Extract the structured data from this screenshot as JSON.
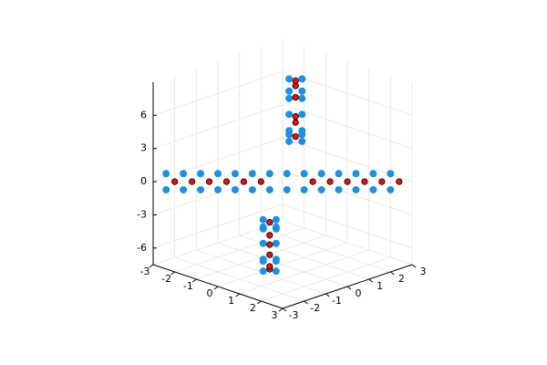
{
  "chart_data": {
    "type": "scatter3d",
    "xlim": [
      -3,
      3
    ],
    "ylim": [
      -3,
      3
    ],
    "zlim": [
      -7.5,
      9
    ],
    "xticks": [
      -3,
      -2,
      -1,
      0,
      1,
      2,
      3
    ],
    "yticks": [
      -3,
      -2,
      -1,
      0,
      1,
      2,
      3
    ],
    "zticks": [
      -6,
      -3,
      0,
      3,
      6
    ],
    "grid": true,
    "series": [
      {
        "color": "#1e90e0",
        "marker_size": 3.6,
        "x": [
          1.85,
          1.55,
          1.45,
          1.15,
          1.05,
          0.75,
          0.75,
          0.45,
          0.45,
          0.15,
          0.25,
          -0.05,
          0.05,
          -0.25,
          -0.05,
          0.25,
          -0.25,
          0.05,
          -0.45,
          -0.15,
          -0.75,
          -0.45,
          -1.05,
          -0.75,
          -1.45,
          -1.15,
          -1.85,
          -1.55,
          -2.45,
          -2.95,
          -2.05,
          -2.55,
          -1.65,
          -2.15,
          -1.25,
          -1.75,
          -0.85,
          -1.35,
          -0.45,
          -0.95,
          -0.05,
          -0.55,
          0.35,
          -0.15,
          0.75,
          0.25,
          1.15,
          0.65,
          1.55,
          1.05,
          1.95,
          1.45,
          2.35,
          1.85,
          2.75,
          2.25
        ],
        "y": [
          -2.15,
          -2.45,
          -1.75,
          -2.05,
          -1.35,
          -1.65,
          -1.05,
          -1.35,
          -0.75,
          -1.05,
          -0.55,
          -0.85,
          -0.35,
          -0.65,
          0.35,
          0.65,
          0.55,
          0.85,
          0.75,
          1.05,
          1.05,
          1.35,
          1.35,
          1.65,
          1.75,
          2.05,
          2.15,
          2.45,
          -2.95,
          -2.45,
          -2.55,
          -2.05,
          -2.15,
          -1.65,
          -1.75,
          -1.25,
          -1.35,
          -0.85,
          -0.95,
          -0.45,
          -0.55,
          -0.05,
          -0.15,
          0.35,
          0.25,
          0.75,
          0.65,
          1.15,
          1.05,
          1.55,
          1.45,
          1.95,
          1.85,
          2.35,
          2.25,
          2.75
        ],
        "z": [
          -0.8,
          -0.8,
          -2,
          -2,
          -4,
          -4,
          -6,
          -6,
          -7.3,
          -7.3,
          -6.5,
          -6.5,
          -4,
          -4,
          4,
          4,
          7,
          7,
          8.5,
          8.5,
          7,
          7,
          4.5,
          4.5,
          2.5,
          2.5,
          1,
          1,
          -0.4,
          0.4,
          -0.4,
          0.4,
          -0.4,
          0.4,
          -0.4,
          0.4,
          -0.4,
          0.4,
          -0.4,
          0.4,
          -0.4,
          0.4,
          -0.4,
          0.4,
          -0.4,
          0.4,
          -0.4,
          0.4,
          -0.4,
          0.4,
          -0.4,
          0.4,
          -0.4,
          0.4,
          -0.4,
          0.4
        ]
      },
      {
        "color": "#e8110f",
        "marker_size": 3.2,
        "x": [
          -2.5,
          -2.1,
          -1.7,
          -1.3,
          -0.9,
          -0.5,
          0.7,
          1.1,
          1.5,
          1.9,
          2.3,
          2.7,
          1.5,
          1.1,
          0.7,
          0.4,
          0.2,
          0,
          0,
          -0.2,
          -0.4,
          -0.7,
          -1.1,
          -1.5
        ],
        "y": [
          -2.5,
          -2.1,
          -1.7,
          -1.3,
          -0.9,
          -0.5,
          0.7,
          1.1,
          1.5,
          1.9,
          2.3,
          2.7,
          -2.1,
          -1.7,
          -1.3,
          -1.0,
          -0.8,
          -0.6,
          0.6,
          0.8,
          1.0,
          1.3,
          1.7,
          2.1
        ],
        "z": [
          0,
          0,
          0,
          0,
          0,
          0,
          0,
          0,
          0,
          0,
          0,
          0,
          -1.3,
          -3,
          -5.3,
          -7,
          -7,
          -5.3,
          5.5,
          8,
          8.2,
          6.3,
          3.5,
          1.7
        ]
      }
    ]
  }
}
